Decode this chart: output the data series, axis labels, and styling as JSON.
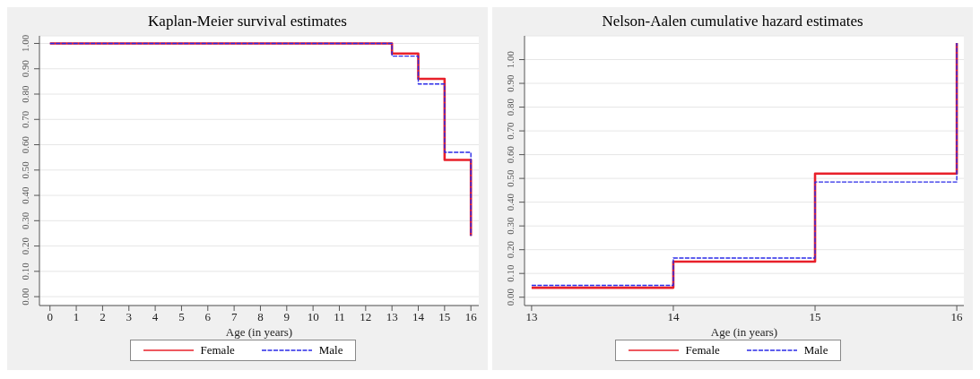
{
  "chart_data": [
    {
      "type": "step",
      "title": "Kaplan-Meier survival estimates",
      "xlabel": "Age (in years)",
      "x": [
        0,
        13,
        14,
        15,
        16
      ],
      "series": [
        {
          "name": "Female",
          "color": "#e8202a",
          "line_style": "solid",
          "values": [
            1,
            0.96,
            0.86,
            0.54,
            0.24
          ]
        },
        {
          "name": "Male",
          "color": "#2a2ae8",
          "line_style": "dashed",
          "values": [
            1,
            0.95,
            0.84,
            0.57,
            0.24
          ]
        }
      ],
      "xlim": [
        -0.4,
        16.3
      ],
      "xticks": [
        0,
        1,
        2,
        3,
        4,
        5,
        6,
        7,
        8,
        9,
        10,
        11,
        12,
        13,
        14,
        15,
        16
      ],
      "ylim": [
        -0.035,
        1.03
      ],
      "yticks": [
        {
          "value": 0,
          "label": "0.00"
        },
        {
          "value": 0.1,
          "label": "0.10"
        },
        {
          "value": 0.2,
          "label": "0.20"
        },
        {
          "value": 0.3,
          "label": "0.30"
        },
        {
          "value": 0.4,
          "label": "0.40"
        },
        {
          "value": 0.5,
          "label": "0.50"
        },
        {
          "value": 0.6,
          "label": "0.60"
        },
        {
          "value": 0.7,
          "label": "0.70"
        },
        {
          "value": 0.8,
          "label": "0.80"
        },
        {
          "value": 0.9,
          "label": "0.90"
        },
        {
          "value": 1,
          "label": "1.00"
        }
      ],
      "grid": "y",
      "legend": "bottom"
    },
    {
      "type": "step",
      "title": "Nelson-Aalen cumulative hazard estimates",
      "xlabel": "Age (in years)",
      "x": [
        13,
        14,
        15,
        16
      ],
      "series": [
        {
          "name": "Female",
          "color": "#e8202a",
          "line_style": "solid",
          "values": [
            0.04,
            0.15,
            0.52,
            1.07
          ]
        },
        {
          "name": "Male",
          "color": "#2a2ae8",
          "line_style": "dashed",
          "values": [
            0.05,
            0.165,
            0.485,
            1.07
          ]
        }
      ],
      "xlim": [
        12.95,
        16.05
      ],
      "xticks": [
        13,
        14,
        15,
        16
      ],
      "ylim": [
        -0.035,
        1.1
      ],
      "yticks": [
        {
          "value": 0,
          "label": "0.00"
        },
        {
          "value": 0.1,
          "label": "0.10"
        },
        {
          "value": 0.2,
          "label": "0.20"
        },
        {
          "value": 0.3,
          "label": "0.30"
        },
        {
          "value": 0.4,
          "label": "0.40"
        },
        {
          "value": 0.5,
          "label": "0.50"
        },
        {
          "value": 0.6,
          "label": "0.60"
        },
        {
          "value": 0.7,
          "label": "0.70"
        },
        {
          "value": 0.8,
          "label": "0.80"
        },
        {
          "value": 0.9,
          "label": "0.90"
        },
        {
          "value": 1,
          "label": "1.00"
        }
      ],
      "grid": "y",
      "legend": "bottom"
    }
  ]
}
